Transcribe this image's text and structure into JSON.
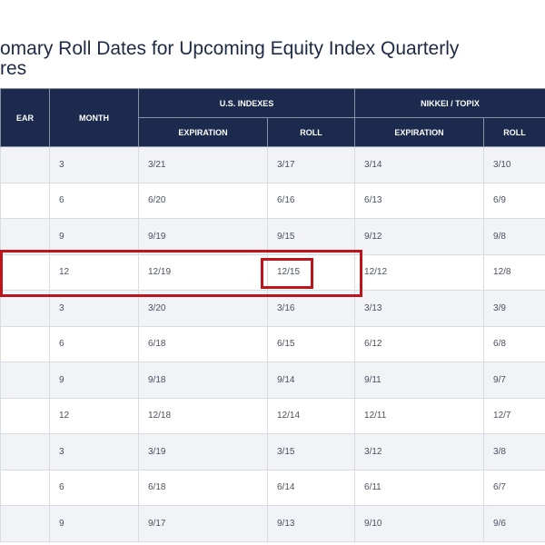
{
  "title": "omary Roll Dates for Upcoming Equity Index Quarterly\nres",
  "headers": {
    "year": "EAR",
    "month": "MONTH",
    "us": "U.S. INDEXES",
    "nikkei": "NIKKEI / TOPIX",
    "expiration": "EXPIRATION",
    "roll": "ROLL"
  },
  "rows": [
    [
      "3",
      "3/21",
      "3/17",
      "3/14",
      "3/10"
    ],
    [
      "6",
      "6/20",
      "6/16",
      "6/13",
      "6/9"
    ],
    [
      "9",
      "9/19",
      "9/15",
      "9/12",
      "9/8"
    ],
    [
      "12",
      "12/19",
      "12/15",
      "12/12",
      "12/8"
    ],
    [
      "3",
      "3/20",
      "3/16",
      "3/13",
      "3/9"
    ],
    [
      "6",
      "6/18",
      "6/15",
      "6/12",
      "6/8"
    ],
    [
      "9",
      "9/18",
      "9/14",
      "9/11",
      "9/7"
    ],
    [
      "12",
      "12/18",
      "12/14",
      "12/11",
      "12/7"
    ],
    [
      "3",
      "3/19",
      "3/15",
      "3/12",
      "3/8"
    ],
    [
      "6",
      "6/18",
      "6/14",
      "6/11",
      "6/7"
    ],
    [
      "9",
      "9/17",
      "9/13",
      "9/10",
      "9/6"
    ]
  ],
  "highlight_color": "#c0141c"
}
